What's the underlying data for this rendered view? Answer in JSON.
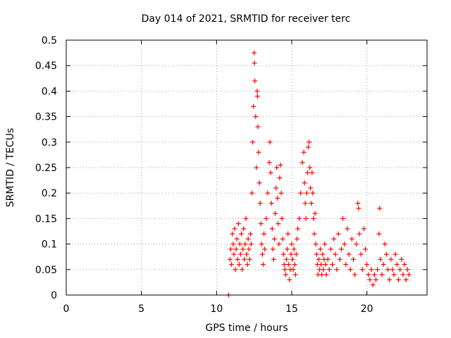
{
  "chart_data": {
    "type": "scatter",
    "title": "Day 014 of 2021, SRMTID for receiver terc",
    "xlabel": "GPS time / hours",
    "ylabel": "SRMTID / TECUs",
    "xlim": [
      0,
      24
    ],
    "ylim": [
      0,
      0.5
    ],
    "x_ticks": [
      0,
      5,
      10,
      15,
      20
    ],
    "x_tick_labels": [
      "0",
      "5",
      "10",
      "15",
      "20"
    ],
    "y_ticks": [
      0,
      0.05,
      0.1,
      0.15,
      0.2,
      0.25,
      0.3,
      0.35,
      0.4,
      0.45,
      0.5
    ],
    "y_tick_labels": [
      "0",
      "0.05",
      "0.1",
      "0.15",
      "0.2",
      "0.25",
      "0.3",
      "0.35",
      "0.4",
      "0.45",
      "0.5"
    ],
    "grid": true,
    "marker": "+",
    "color": "#ff0000",
    "series": [
      {
        "name": "SRMTID",
        "points": [
          [
            10.8,
            0.0
          ],
          [
            10.9,
            0.07
          ],
          [
            10.95,
            0.09
          ],
          [
            11.0,
            0.06
          ],
          [
            11.05,
            0.12
          ],
          [
            11.1,
            0.1
          ],
          [
            11.15,
            0.08
          ],
          [
            11.2,
            0.13
          ],
          [
            11.25,
            0.05
          ],
          [
            11.3,
            0.09
          ],
          [
            11.35,
            0.11
          ],
          [
            11.4,
            0.07
          ],
          [
            11.45,
            0.14
          ],
          [
            11.5,
            0.06
          ],
          [
            11.55,
            0.1
          ],
          [
            11.6,
            0.08
          ],
          [
            11.65,
            0.12
          ],
          [
            11.7,
            0.05
          ],
          [
            11.75,
            0.09
          ],
          [
            11.8,
            0.13
          ],
          [
            11.85,
            0.07
          ],
          [
            11.9,
            0.1
          ],
          [
            11.95,
            0.15
          ],
          [
            12.0,
            0.08
          ],
          [
            12.05,
            0.06
          ],
          [
            12.1,
            0.11
          ],
          [
            12.15,
            0.09
          ],
          [
            12.2,
            0.07
          ],
          [
            12.25,
            0.12
          ],
          [
            12.3,
            0.1
          ],
          [
            12.35,
            0.2
          ],
          [
            12.4,
            0.3
          ],
          [
            12.45,
            0.37
          ],
          [
            12.5,
            0.475
          ],
          [
            12.52,
            0.455
          ],
          [
            12.55,
            0.42
          ],
          [
            12.6,
            0.35
          ],
          [
            12.65,
            0.25
          ],
          [
            12.7,
            0.4
          ],
          [
            12.72,
            0.39
          ],
          [
            12.75,
            0.33
          ],
          [
            12.8,
            0.28
          ],
          [
            12.85,
            0.22
          ],
          [
            12.9,
            0.18
          ],
          [
            12.95,
            0.14
          ],
          [
            13.0,
            0.1
          ],
          [
            13.05,
            0.08
          ],
          [
            13.1,
            0.06
          ],
          [
            13.15,
            0.12
          ],
          [
            13.2,
            0.09
          ],
          [
            13.3,
            0.15
          ],
          [
            13.4,
            0.2
          ],
          [
            13.5,
            0.26
          ],
          [
            13.55,
            0.3
          ],
          [
            13.6,
            0.24
          ],
          [
            13.65,
            0.18
          ],
          [
            13.7,
            0.13
          ],
          [
            13.75,
            0.09
          ],
          [
            13.8,
            0.07
          ],
          [
            13.85,
            0.11
          ],
          [
            13.9,
            0.16
          ],
          [
            13.95,
            0.21
          ],
          [
            14.0,
            0.25
          ],
          [
            14.05,
            0.19
          ],
          [
            14.1,
            0.14
          ],
          [
            14.15,
            0.1
          ],
          [
            14.2,
            0.23
          ],
          [
            14.25,
            0.255
          ],
          [
            14.3,
            0.2
          ],
          [
            14.35,
            0.15
          ],
          [
            14.4,
            0.11
          ],
          [
            14.45,
            0.08
          ],
          [
            14.5,
            0.06
          ],
          [
            14.55,
            0.05
          ],
          [
            14.6,
            0.04
          ],
          [
            14.65,
            0.07
          ],
          [
            14.7,
            0.09
          ],
          [
            14.75,
            0.12
          ],
          [
            14.8,
            0.06
          ],
          [
            14.85,
            0.03
          ],
          [
            14.9,
            0.05
          ],
          [
            14.95,
            0.08
          ],
          [
            15.0,
            0.1
          ],
          [
            15.05,
            0.07
          ],
          [
            15.1,
            0.05
          ],
          [
            15.15,
            0.09
          ],
          [
            15.2,
            0.06
          ],
          [
            15.25,
            0.04
          ],
          [
            15.3,
            0.08
          ],
          [
            15.35,
            0.11
          ],
          [
            15.4,
            0.13
          ],
          [
            15.5,
            0.15
          ],
          [
            15.6,
            0.2
          ],
          [
            15.7,
            0.26
          ],
          [
            15.8,
            0.28
          ],
          [
            15.85,
            0.22
          ],
          [
            15.9,
            0.18
          ],
          [
            15.95,
            0.15
          ],
          [
            16.0,
            0.2
          ],
          [
            16.05,
            0.24
          ],
          [
            16.1,
            0.29
          ],
          [
            16.15,
            0.3
          ],
          [
            16.2,
            0.25
          ],
          [
            16.25,
            0.21
          ],
          [
            16.3,
            0.18
          ],
          [
            16.35,
            0.24
          ],
          [
            16.4,
            0.2
          ],
          [
            16.45,
            0.15
          ],
          [
            16.5,
            0.12
          ],
          [
            16.55,
            0.16
          ],
          [
            16.6,
            0.1
          ],
          [
            16.65,
            0.08
          ],
          [
            16.7,
            0.06
          ],
          [
            16.75,
            0.04
          ],
          [
            16.8,
            0.07
          ],
          [
            16.85,
            0.05
          ],
          [
            16.9,
            0.09
          ],
          [
            16.95,
            0.06
          ],
          [
            17.0,
            0.04
          ],
          [
            17.05,
            0.08
          ],
          [
            17.1,
            0.05
          ],
          [
            17.15,
            0.07
          ],
          [
            17.2,
            0.1
          ],
          [
            17.25,
            0.06
          ],
          [
            17.3,
            0.04
          ],
          [
            17.4,
            0.07
          ],
          [
            17.5,
            0.05
          ],
          [
            17.6,
            0.09
          ],
          [
            17.7,
            0.06
          ],
          [
            17.8,
            0.11
          ],
          [
            17.9,
            0.08
          ],
          [
            18.0,
            0.05
          ],
          [
            18.1,
            0.12
          ],
          [
            18.2,
            0.07
          ],
          [
            18.3,
            0.09
          ],
          [
            18.4,
            0.15
          ],
          [
            18.5,
            0.1
          ],
          [
            18.6,
            0.06
          ],
          [
            18.7,
            0.13
          ],
          [
            18.8,
            0.08
          ],
          [
            18.9,
            0.05
          ],
          [
            19.0,
            0.11
          ],
          [
            19.1,
            0.07
          ],
          [
            19.2,
            0.04
          ],
          [
            19.3,
            0.1
          ],
          [
            19.4,
            0.18
          ],
          [
            19.45,
            0.17
          ],
          [
            19.5,
            0.12
          ],
          [
            19.6,
            0.08
          ],
          [
            19.7,
            0.05
          ],
          [
            19.8,
            0.13
          ],
          [
            19.9,
            0.09
          ],
          [
            20.0,
            0.06
          ],
          [
            20.1,
            0.04
          ],
          [
            20.2,
            0.03
          ],
          [
            20.3,
            0.05
          ],
          [
            20.4,
            0.02
          ],
          [
            20.5,
            0.04
          ],
          [
            20.6,
            0.03
          ],
          [
            20.7,
            0.05
          ],
          [
            20.8,
            0.12
          ],
          [
            20.85,
            0.17
          ],
          [
            20.9,
            0.07
          ],
          [
            21.0,
            0.04
          ],
          [
            21.1,
            0.06
          ],
          [
            21.2,
            0.1
          ],
          [
            21.3,
            0.08
          ],
          [
            21.4,
            0.05
          ],
          [
            21.5,
            0.03
          ],
          [
            21.6,
            0.07
          ],
          [
            21.7,
            0.05
          ],
          [
            21.8,
            0.04
          ],
          [
            21.9,
            0.08
          ],
          [
            22.0,
            0.06
          ],
          [
            22.1,
            0.03
          ],
          [
            22.2,
            0.05
          ],
          [
            22.3,
            0.07
          ],
          [
            22.4,
            0.04
          ],
          [
            22.5,
            0.06
          ],
          [
            22.6,
            0.03
          ],
          [
            22.7,
            0.05
          ],
          [
            22.8,
            0.04
          ]
        ]
      }
    ]
  }
}
